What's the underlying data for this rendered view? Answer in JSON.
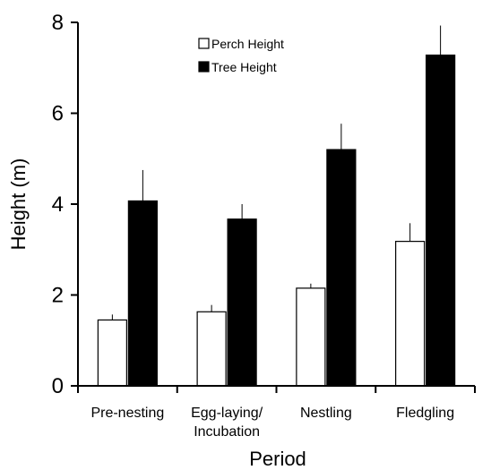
{
  "chart_data": {
    "type": "bar",
    "title": "",
    "xlabel": "Period",
    "ylabel": "Height (m)",
    "ylim": [
      0,
      8
    ],
    "yticks": [
      0,
      2,
      4,
      6,
      8
    ],
    "categories": [
      [
        "Pre-nesting"
      ],
      [
        "Egg-laying/",
        "Incubation"
      ],
      [
        "Nestling"
      ],
      [
        "Fledgling"
      ]
    ],
    "series": [
      {
        "name": "Perch Height",
        "color": "#ffffff",
        "values": [
          1.45,
          1.63,
          2.15,
          3.18
        ],
        "errors": [
          0.12,
          0.15,
          0.1,
          0.4
        ]
      },
      {
        "name": "Tree Height",
        "color": "#000000",
        "values": [
          4.07,
          3.67,
          5.2,
          7.28
        ],
        "errors": [
          0.68,
          0.33,
          0.57,
          0.65
        ]
      }
    ],
    "legend": {
      "position": "top-center"
    },
    "grid": false
  }
}
